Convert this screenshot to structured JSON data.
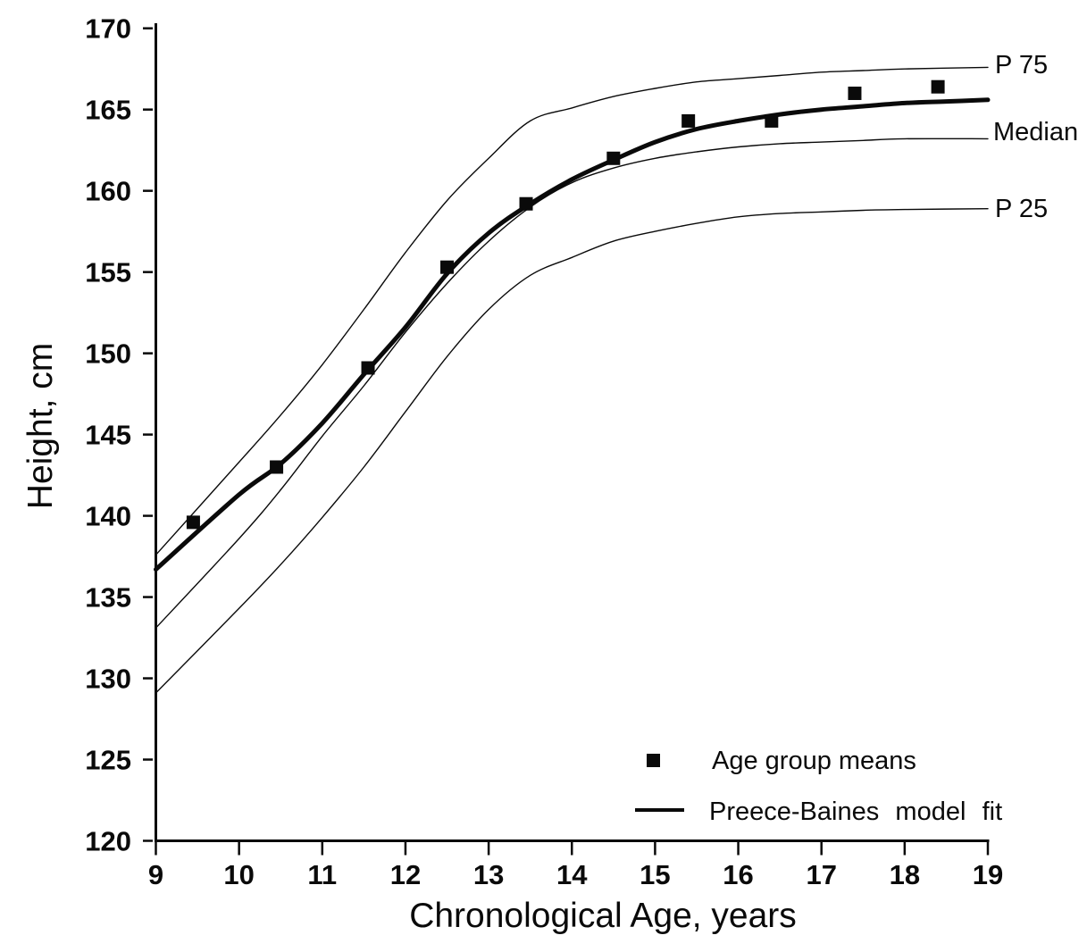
{
  "figure": {
    "xlabel": "Chronological Age, years",
    "ylabel": "Height, cm"
  },
  "colors": {
    "ink": "#0a0a0a",
    "background": "#ffffff"
  },
  "chart_data": {
    "type": "line",
    "title": "",
    "xlabel": "Chronological Age, years",
    "ylabel": "Height, cm",
    "xlim": [
      9,
      19
    ],
    "ylim": [
      120,
      170
    ],
    "x_ticks": [
      9,
      10,
      11,
      12,
      13,
      14,
      15,
      16,
      17,
      18,
      19
    ],
    "y_ticks": [
      120,
      125,
      130,
      135,
      140,
      145,
      150,
      155,
      160,
      165,
      170
    ],
    "grid": false,
    "legend_position": "lower right",
    "series": [
      {
        "name": "P 75",
        "type": "line",
        "line_weight": "thin",
        "points": [
          [
            9,
            137.6
          ],
          [
            10,
            143.3
          ],
          [
            10.5,
            146.2
          ],
          [
            11,
            149.3
          ],
          [
            11.5,
            152.7
          ],
          [
            12,
            156.2
          ],
          [
            12.5,
            159.4
          ],
          [
            13,
            162.0
          ],
          [
            13.5,
            164.3
          ],
          [
            14,
            165.1
          ],
          [
            14.5,
            165.8
          ],
          [
            15,
            166.3
          ],
          [
            15.5,
            166.7
          ],
          [
            16,
            166.9
          ],
          [
            16.5,
            167.1
          ],
          [
            17,
            167.3
          ],
          [
            17.5,
            167.4
          ],
          [
            18,
            167.5
          ],
          [
            19,
            167.6
          ]
        ]
      },
      {
        "name": "Median",
        "type": "line",
        "line_weight": "thin",
        "points": [
          [
            9,
            133.1
          ],
          [
            10,
            138.6
          ],
          [
            10.5,
            141.6
          ],
          [
            11,
            144.9
          ],
          [
            11.5,
            148.0
          ],
          [
            12,
            151.3
          ],
          [
            12.5,
            154.3
          ],
          [
            13,
            156.9
          ],
          [
            13.5,
            159.0
          ],
          [
            14,
            160.5
          ],
          [
            14.5,
            161.4
          ],
          [
            15,
            162.0
          ],
          [
            15.5,
            162.4
          ],
          [
            16,
            162.7
          ],
          [
            16.5,
            162.9
          ],
          [
            17,
            163.0
          ],
          [
            17.5,
            163.1
          ],
          [
            18,
            163.2
          ],
          [
            19,
            163.2
          ]
        ]
      },
      {
        "name": "P 25",
        "type": "line",
        "line_weight": "thin",
        "points": [
          [
            9,
            129.1
          ],
          [
            10,
            134.3
          ],
          [
            10.5,
            137.0
          ],
          [
            11,
            139.9
          ],
          [
            11.5,
            143.0
          ],
          [
            12,
            146.4
          ],
          [
            12.5,
            149.8
          ],
          [
            13,
            152.7
          ],
          [
            13.5,
            154.8
          ],
          [
            14,
            155.9
          ],
          [
            14.5,
            156.9
          ],
          [
            15,
            157.5
          ],
          [
            15.5,
            158.0
          ],
          [
            16,
            158.4
          ],
          [
            16.5,
            158.6
          ],
          [
            17,
            158.7
          ],
          [
            17.5,
            158.8
          ],
          [
            18,
            158.85
          ],
          [
            19,
            158.9
          ]
        ]
      },
      {
        "name": "Preece-Baines model fit",
        "type": "line",
        "line_weight": "thick",
        "points": [
          [
            9,
            136.7
          ],
          [
            10,
            141.3
          ],
          [
            10.5,
            143.2
          ],
          [
            11,
            145.7
          ],
          [
            11.5,
            148.7
          ],
          [
            12,
            151.6
          ],
          [
            12.5,
            154.9
          ],
          [
            13,
            157.4
          ],
          [
            13.5,
            159.2
          ],
          [
            14,
            160.7
          ],
          [
            14.5,
            161.9
          ],
          [
            15,
            163.0
          ],
          [
            15.5,
            163.8
          ],
          [
            16,
            164.3
          ],
          [
            16.5,
            164.7
          ],
          [
            17,
            165.0
          ],
          [
            17.5,
            165.2
          ],
          [
            18,
            165.4
          ],
          [
            18.5,
            165.5
          ],
          [
            19,
            165.6
          ]
        ]
      },
      {
        "name": "Age group means",
        "type": "scatter",
        "marker": "filled-square",
        "points": [
          [
            9.45,
            139.6
          ],
          [
            10.45,
            143.0
          ],
          [
            11.55,
            149.1
          ],
          [
            12.5,
            155.3
          ],
          [
            13.45,
            159.2
          ],
          [
            14.5,
            162.0
          ],
          [
            15.4,
            164.3
          ],
          [
            16.4,
            164.3
          ],
          [
            17.4,
            166.0
          ],
          [
            18.4,
            166.4
          ]
        ]
      }
    ]
  }
}
